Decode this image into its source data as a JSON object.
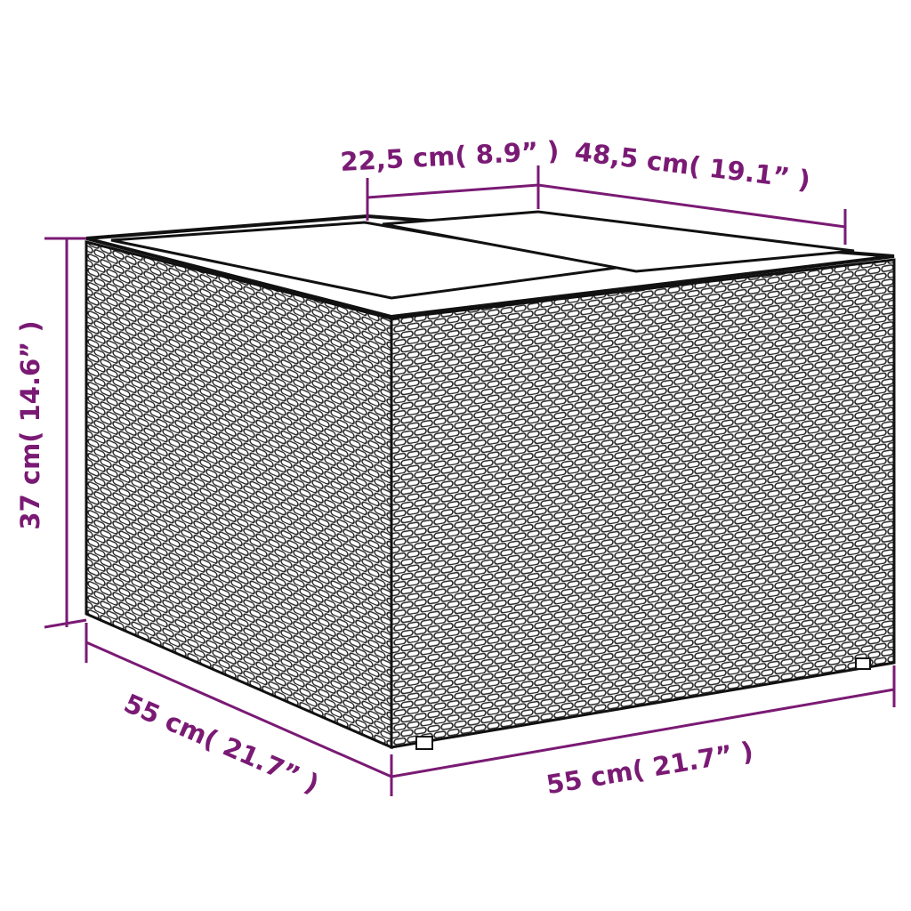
{
  "colors": {
    "dimension": "#7a1a74",
    "outline": "#1a1a1a",
    "background": "#ffffff"
  },
  "product": "wicker-storage-table-with-glass-top",
  "dimensions": {
    "top_panel_width": "22,5 cm( 8.9”  )",
    "top_depth": "48,5 cm( 19.1”  )",
    "height": "37 cm( 14.6”  )",
    "depth": "55 cm( 21.7”  )",
    "width": "55 cm( 21.7”  )"
  }
}
